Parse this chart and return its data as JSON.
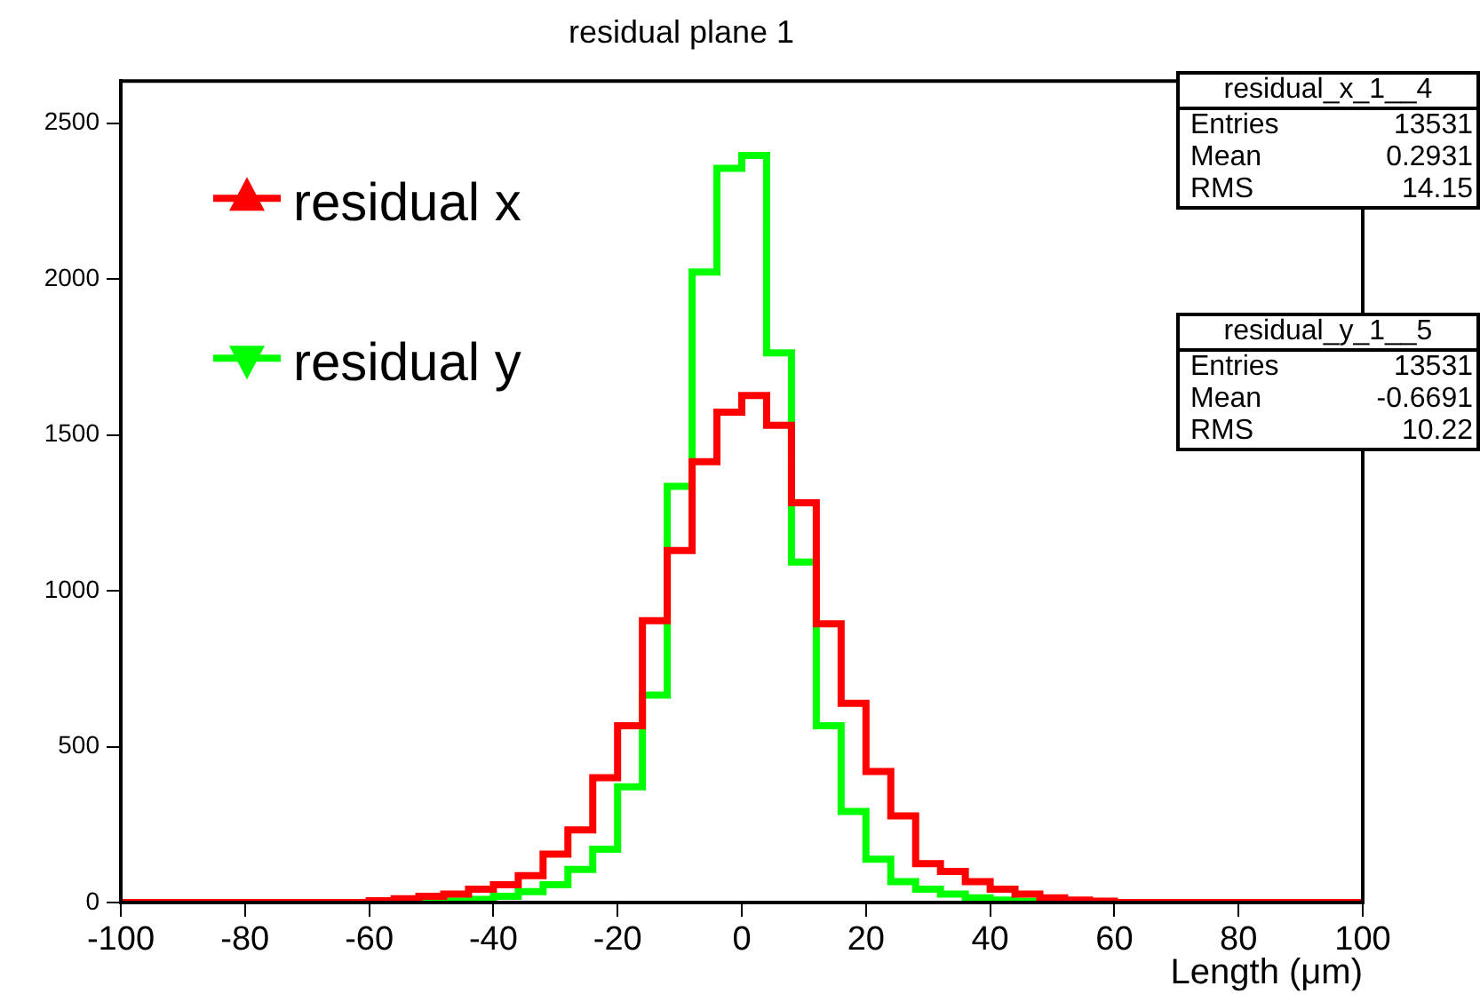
{
  "chart_data": {
    "type": "histogram",
    "title": "residual plane 1",
    "xlabel": "Length (μm)",
    "bins": [
      -100,
      -96,
      -92,
      -88,
      -84,
      -80,
      -76,
      -72,
      -68,
      -64,
      -60,
      -56,
      -52,
      -48,
      -44,
      -40,
      -36,
      -32,
      -28,
      -24,
      -20,
      -16,
      -12,
      -8,
      -4,
      0,
      4,
      8,
      12,
      16,
      20,
      24,
      28,
      32,
      36,
      40,
      44,
      48,
      52,
      56,
      60,
      64,
      68,
      72,
      76,
      80,
      84,
      88,
      92,
      96,
      100
    ],
    "series": [
      {
        "name": "residual x",
        "color": "#ff0000",
        "marker": "triangle",
        "values": [
          0,
          0,
          0,
          0,
          0,
          0,
          0,
          0,
          0,
          0,
          6,
          12,
          20,
          27,
          43,
          57,
          86,
          155,
          233,
          400,
          567,
          904,
          1129,
          1414,
          1573,
          1626,
          1531,
          1282,
          894,
          639,
          420,
          278,
          125,
          100,
          67,
          43,
          27,
          15,
          8,
          4,
          0,
          0,
          0,
          0,
          0,
          0,
          0,
          0,
          0,
          0
        ]
      },
      {
        "name": "residual y",
        "color": "#00ff00",
        "marker": "triangle-down",
        "values": [
          0,
          0,
          0,
          0,
          0,
          0,
          0,
          0,
          0,
          0,
          1,
          2,
          3,
          5,
          10,
          20,
          35,
          57,
          106,
          171,
          371,
          665,
          1335,
          2022,
          2355,
          2396,
          1763,
          1092,
          567,
          292,
          139,
          67,
          43,
          27,
          15,
          8,
          4,
          2,
          0,
          0,
          0,
          0,
          0,
          0,
          0,
          0,
          0,
          0,
          0,
          0
        ]
      }
    ],
    "xlim": [
      -100,
      100
    ],
    "xticks": [
      -100,
      -80,
      -60,
      -40,
      -20,
      0,
      20,
      40,
      60,
      80,
      100
    ],
    "ylim": [
      0,
      2635
    ],
    "yticks": [
      0,
      500,
      1000,
      1500,
      2000,
      2500
    ],
    "grid": false,
    "legend": "top left",
    "annotations": [
      "residual_x_1__4",
      "Entries 13531",
      "Mean 0.2931",
      "RMS 14.15",
      "residual_y_1__5",
      "Entries 13531",
      "Mean -0.6691",
      "RMS 10.22"
    ]
  }
}
